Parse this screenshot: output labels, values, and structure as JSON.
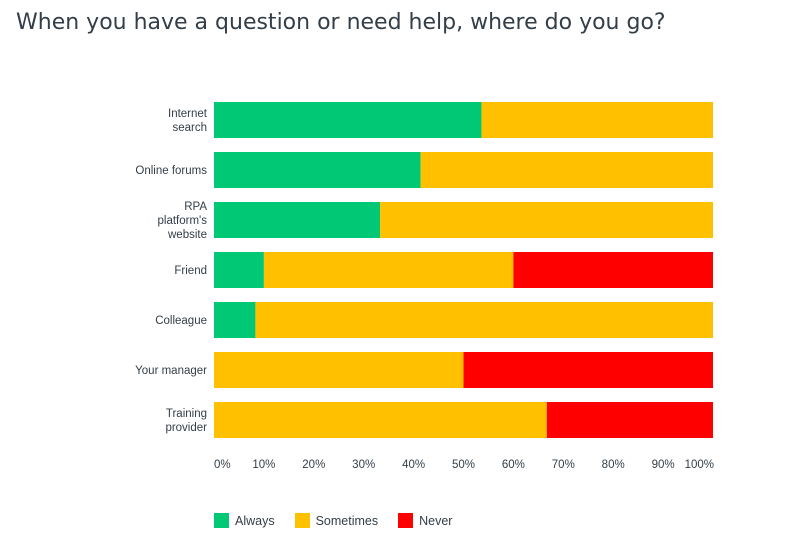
{
  "chart_data": {
    "type": "bar",
    "orientation": "horizontal",
    "stacked": true,
    "title": "When you have a question or need help, where do you go?",
    "categories": [
      [
        "Internet",
        "search"
      ],
      [
        "Online forums"
      ],
      [
        "RPA",
        "platform's",
        "website"
      ],
      [
        "Friend"
      ],
      [
        "Colleague"
      ],
      [
        "Your manager"
      ],
      [
        "Training",
        "provider"
      ]
    ],
    "series": [
      {
        "name": "Always",
        "color": "#00c875",
        "values": [
          53.6,
          41.4,
          33.3,
          10.0,
          8.3,
          0,
          0
        ]
      },
      {
        "name": "Sometimes",
        "color": "#ffc000",
        "values": [
          46.4,
          58.6,
          66.7,
          50.0,
          91.7,
          50.0,
          66.7
        ]
      },
      {
        "name": "Never",
        "color": "#ff0000",
        "values": [
          0,
          0,
          0,
          40.0,
          0,
          50.0,
          33.3
        ]
      }
    ],
    "x_ticks": [
      "0%",
      "10%",
      "20%",
      "30%",
      "40%",
      "50%",
      "60%",
      "70%",
      "80%",
      "90%",
      "100%"
    ],
    "xlim": [
      0,
      100
    ],
    "grid": false,
    "legend_position": "bottom-left"
  }
}
